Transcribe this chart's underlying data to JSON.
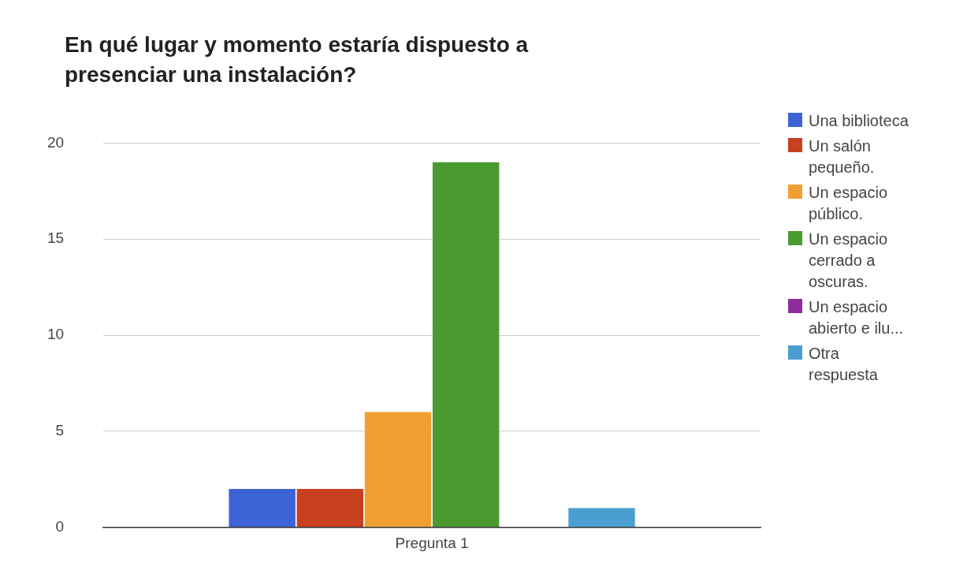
{
  "chart_data": {
    "type": "bar",
    "title": "En qué lugar y momento estaría dispuesto a presenciar una instalación?",
    "categories": [
      "Pregunta 1"
    ],
    "series": [
      {
        "name": "Una biblioteca",
        "color": "#3d64d6",
        "values": [
          2
        ]
      },
      {
        "name": "Un salón pequeño.",
        "color": "#c8401e",
        "values": [
          2
        ]
      },
      {
        "name": "Un espacio público.",
        "color": "#f0a030",
        "values": [
          6
        ]
      },
      {
        "name": "Un espacio cerrado a oscuras.",
        "color": "#4a9a30",
        "values": [
          19
        ]
      },
      {
        "name": "Un espacio abierto e ilu...",
        "color": "#8e2c9e",
        "values": [
          0
        ]
      },
      {
        "name": "Otra respuesta",
        "color": "#4a9fd0",
        "values": [
          1
        ]
      }
    ],
    "ylim": [
      0,
      20
    ],
    "yticks": [
      0,
      5,
      10,
      15,
      20
    ],
    "grid": "y",
    "legend": "right"
  }
}
